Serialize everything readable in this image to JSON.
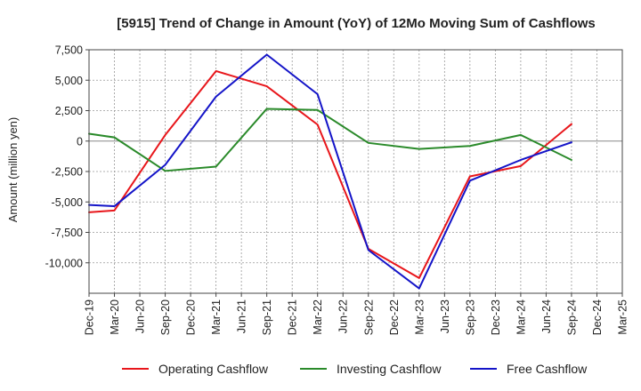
{
  "chart_data": {
    "type": "line",
    "title": "[5915]  Trend of Change in Amount (YoY) of 12Mo Moving Sum of Cashflows",
    "ylabel": "Amount (million yen)",
    "xlabel": "",
    "ylim": [
      -12500,
      7500
    ],
    "yticks": [
      7500,
      5000,
      2500,
      0,
      -2500,
      -5000,
      -7500,
      -10000
    ],
    "ytick_labels": [
      "7,500",
      "5,000",
      "2,500",
      "0",
      "-2,500",
      "-5,000",
      "-7,500",
      "-10,000"
    ],
    "categories": [
      "Dec-19",
      "Mar-20",
      "Jun-20",
      "Sep-20",
      "Dec-20",
      "Mar-21",
      "Jun-21",
      "Sep-21",
      "Dec-21",
      "Mar-22",
      "Jun-22",
      "Sep-22",
      "Dec-22",
      "Mar-23",
      "Jun-23",
      "Sep-23",
      "Dec-23",
      "Mar-24",
      "Jun-24",
      "Sep-24",
      "Dec-24",
      "Mar-25"
    ],
    "grid": true,
    "legend_position": "bottom",
    "series": [
      {
        "name": "Operating Cashflow",
        "color": "#e8161b",
        "values": [
          -5850,
          -5700,
          null,
          500,
          null,
          5750,
          null,
          4500,
          null,
          1350,
          null,
          -8850,
          null,
          -11250,
          null,
          -2900,
          null,
          -2050,
          null,
          1400,
          null,
          null
        ]
      },
      {
        "name": "Investing Cashflow",
        "color": "#2a8a2a",
        "values": [
          600,
          300,
          null,
          -2450,
          null,
          -2100,
          null,
          2650,
          null,
          2550,
          null,
          -150,
          null,
          -650,
          null,
          -400,
          null,
          500,
          null,
          -1550,
          null,
          null
        ]
      },
      {
        "name": "Free Cashflow",
        "color": "#1414c8",
        "values": [
          -5250,
          -5350,
          null,
          -1950,
          null,
          3650,
          null,
          7100,
          null,
          3850,
          null,
          -8950,
          null,
          -12100,
          null,
          -3250,
          null,
          -1550,
          null,
          -100,
          null,
          null
        ]
      }
    ]
  }
}
